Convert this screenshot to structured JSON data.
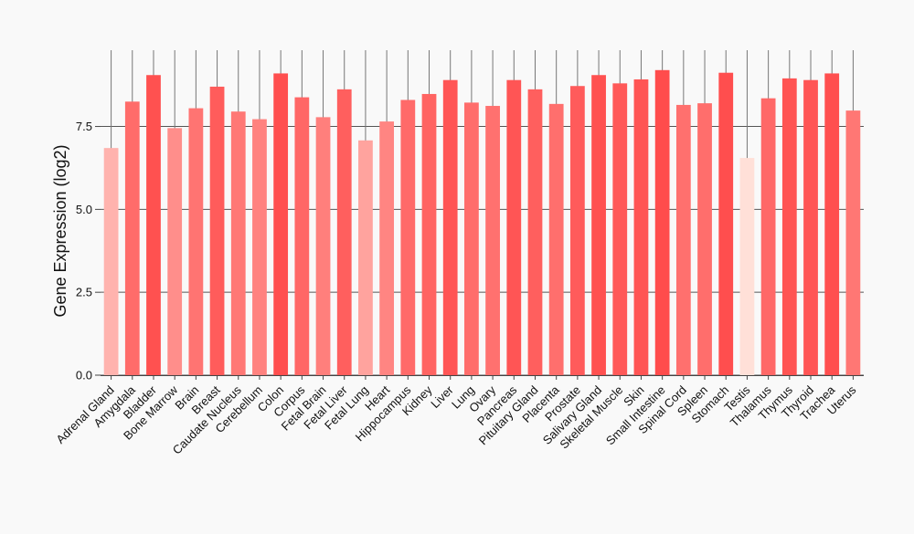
{
  "chart_data": {
    "type": "bar",
    "title": "",
    "xlabel": "",
    "ylabel": "Gene Expression (log2)",
    "ylim": [
      0,
      9.8
    ],
    "yticks": [
      0.0,
      2.5,
      5.0,
      7.5
    ],
    "ytick_labels": [
      "0.0",
      "2.5",
      "5.0",
      "7.5"
    ],
    "grid": true,
    "categories": [
      "Adrenal Gland",
      "Amygdala",
      "Bladder",
      "Bone Marrow",
      "Brain",
      "Breast",
      "Caudate Nucleus",
      "Cerebellum",
      "Colon",
      "Corpus",
      "Fetal Brain",
      "Fetal Liver",
      "Fetal Lung",
      "Heart",
      "Hippocampus",
      "Kidney",
      "Liver",
      "Lung",
      "Ovary",
      "Pancreas",
      "Pituitary Gland",
      "Placenta",
      "Prostate",
      "Salivary Gland",
      "Skeletal Muscle",
      "Skin",
      "Small Intestine",
      "Spinal Cord",
      "Spleen",
      "Stomach",
      "Testis",
      "Thalamus",
      "Thymus",
      "Thyroid",
      "Trachea",
      "Uterus"
    ],
    "values": [
      6.85,
      8.25,
      9.05,
      7.45,
      8.05,
      8.7,
      7.95,
      7.72,
      9.1,
      8.38,
      7.78,
      8.62,
      7.08,
      7.65,
      8.3,
      8.48,
      8.9,
      8.22,
      8.12,
      8.9,
      8.62,
      8.18,
      8.72,
      9.05,
      8.8,
      8.92,
      9.2,
      8.15,
      8.2,
      9.12,
      6.55,
      8.35,
      8.95,
      8.9,
      9.1,
      7.98
    ],
    "colors": {
      "background": "#f9f9f9",
      "grid": "#555555",
      "axis": "#444444",
      "bar_low": "#ffe0d8",
      "bar_high": "#ff4c4c"
    }
  }
}
